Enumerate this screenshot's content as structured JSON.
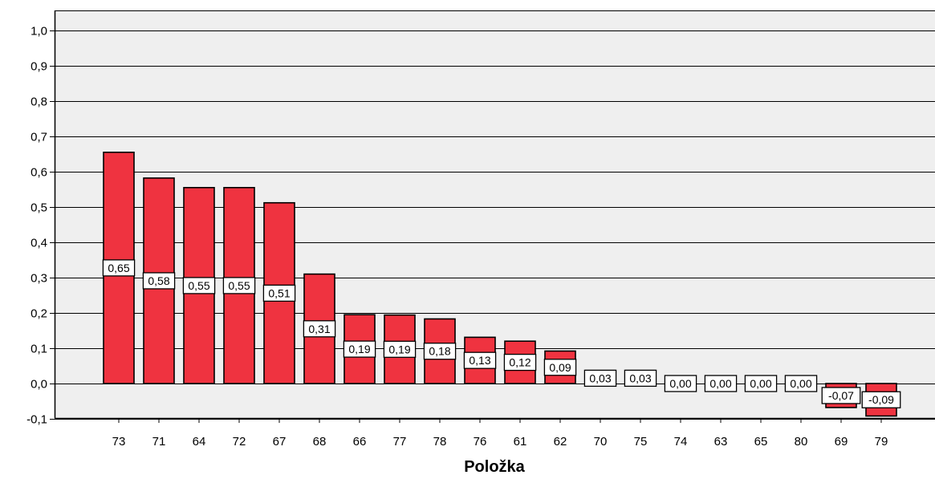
{
  "chart_data": {
    "type": "bar",
    "xlabel": "Položka",
    "ylabel": "",
    "ylim": [
      -0.1,
      1.0
    ],
    "yticks": [
      "1,0",
      "0,9",
      "0,8",
      "0,7",
      "0,6",
      "0,5",
      "0,4",
      "0,3",
      "0,2",
      "0,1",
      "0,0",
      "-0,1"
    ],
    "ytick_values": [
      1.0,
      0.9,
      0.8,
      0.7,
      0.6,
      0.5,
      0.4,
      0.3,
      0.2,
      0.1,
      0.0,
      -0.1
    ],
    "grid": "horizontal",
    "plot_background": "#efefef",
    "bar_color": "#ef3340",
    "categories": [
      "73",
      "71",
      "64",
      "72",
      "67",
      "68",
      "66",
      "77",
      "78",
      "76",
      "61",
      "62",
      "70",
      "75",
      "74",
      "63",
      "65",
      "80",
      "69",
      "79"
    ],
    "values": [
      0.655,
      0.582,
      0.555,
      0.555,
      0.512,
      0.31,
      0.195,
      0.194,
      0.183,
      0.131,
      0.12,
      0.092,
      0.03,
      0.03,
      0.0,
      0.0,
      0.0,
      0.0,
      -0.068,
      -0.092
    ],
    "labels": [
      "0,65",
      "0,58",
      "0,55",
      "0,55",
      "0,51",
      "0,31",
      "0,19",
      "0,19",
      "0,18",
      "0,13",
      "0,12",
      "0,09",
      "0,03",
      "0,03",
      "0,00",
      "0,00",
      "0,00",
      "0,00",
      "-0,07",
      "-0,09"
    ]
  }
}
